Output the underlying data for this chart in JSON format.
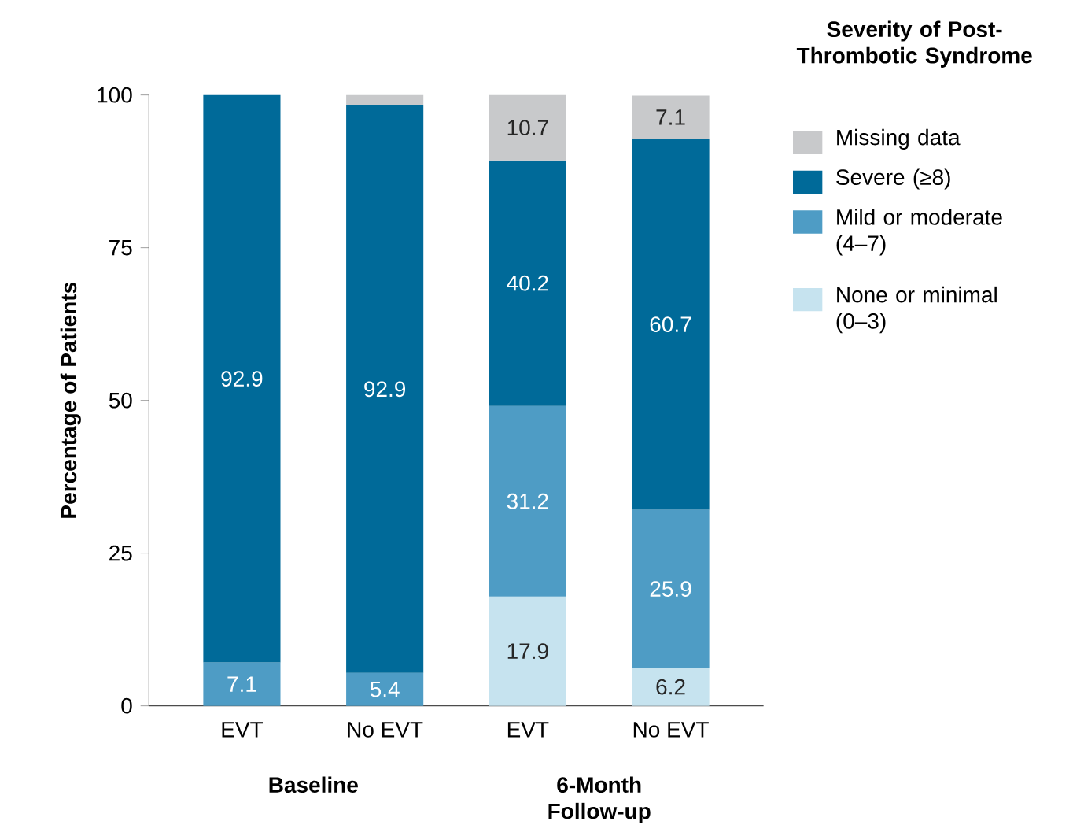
{
  "chart_data": {
    "type": "bar",
    "stacked": true,
    "categories": [
      "EVT",
      "No EVT",
      "EVT",
      "No EVT"
    ],
    "series": [
      {
        "name": "None or minimal (0–3)",
        "color": "#c6e3ef",
        "values": [
          null,
          null,
          17.9,
          6.2
        ],
        "value_labels": [
          null,
          null,
          "17.9",
          "6.2"
        ]
      },
      {
        "name": "Mild or moderate (4–7)",
        "color": "#4e9cc5",
        "values": [
          7.1,
          5.4,
          31.2,
          25.9
        ],
        "value_labels": [
          "7.1",
          "5.4",
          "31.2",
          "25.9"
        ]
      },
      {
        "name": "Severe (≥8)",
        "color": "#006a99",
        "values": [
          92.9,
          92.9,
          40.2,
          60.7
        ],
        "value_labels": [
          "92.9",
          "92.9",
          "40.2",
          "60.7"
        ]
      },
      {
        "name": "Missing data",
        "color": "#c8c9cb",
        "values": [
          null,
          1.7,
          10.7,
          7.1
        ],
        "value_labels": [
          null,
          null,
          "10.7",
          "7.1"
        ]
      }
    ],
    "ylabel": "Percentage of Patients",
    "legend_title": "Severity of Post-Thrombotic Syndrome",
    "legend": "right",
    "ylim": [
      0,
      100
    ],
    "yticks": [
      0,
      25,
      50,
      75,
      100
    ],
    "annotations": [
      "Baseline",
      "6-Month Follow-up"
    ]
  }
}
